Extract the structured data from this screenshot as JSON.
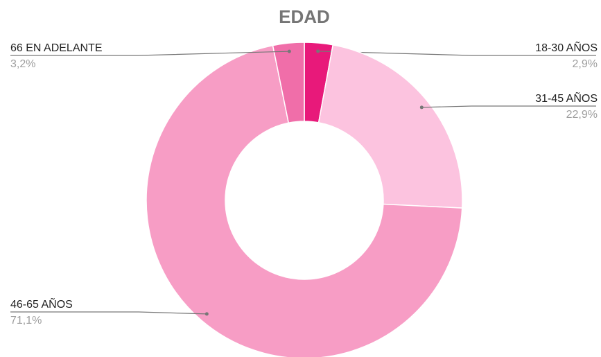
{
  "chart_data": {
    "type": "pie",
    "title": "EDAD",
    "categories": [
      "18-30 AÑOS",
      "31-45 AÑOS",
      "46-65 AÑOS",
      "66 EN ADELANTE"
    ],
    "values": [
      2.9,
      22.9,
      71.1,
      3.2
    ],
    "value_labels": [
      "2,9%",
      "22,9%",
      "71,1%",
      "3,2%"
    ],
    "colors": [
      "#e8197a",
      "#fcc3df",
      "#f79dc5",
      "#f06ea9"
    ],
    "donut": true
  }
}
